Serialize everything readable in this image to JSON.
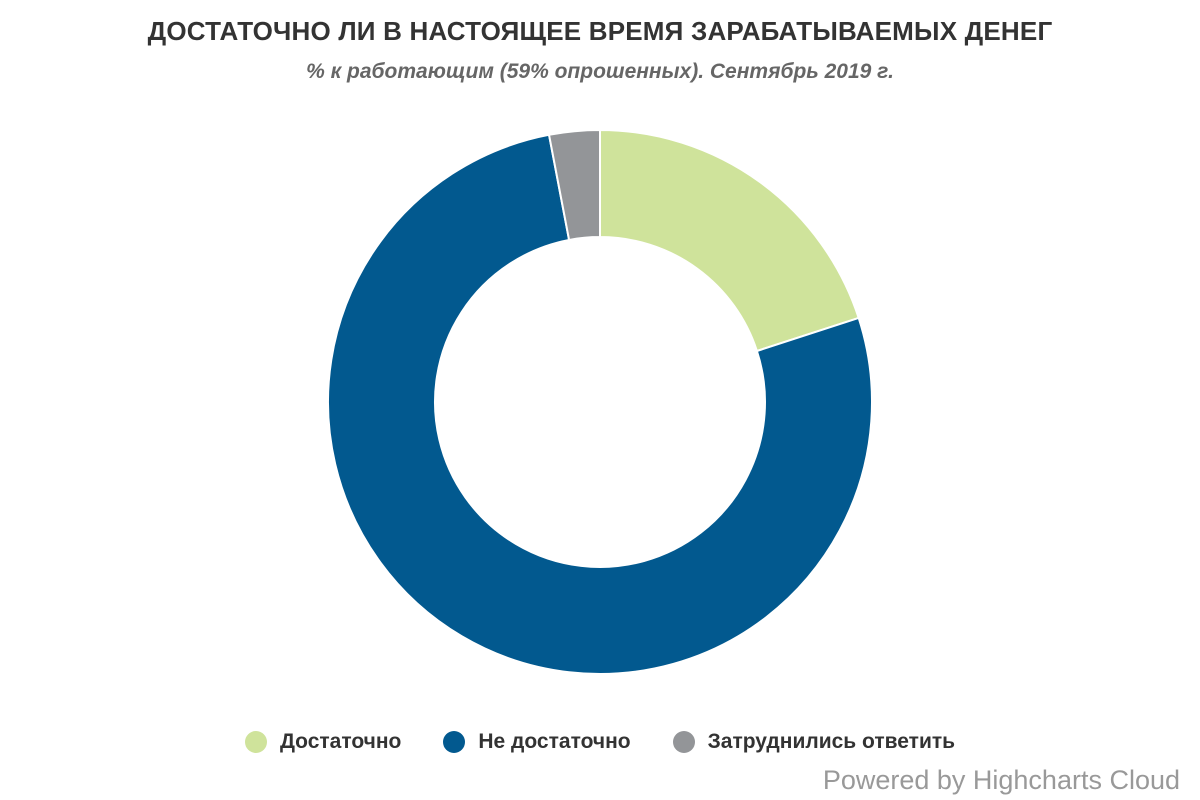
{
  "chart_data": {
    "type": "pie",
    "variant": "donut",
    "title": "ДОСТАТОЧНО ЛИ В НАСТОЯЩЕЕ ВРЕМЯ ЗАРАБАТЫВАЕМЫХ ДЕНЕГ",
    "subtitle": "% к работающим (59% опрошенных). Сентябрь 2019 г.",
    "categories": [
      "Достаточно",
      "Не достаточно",
      "Затруднились ответить"
    ],
    "values": [
      20,
      77,
      3
    ],
    "colors": [
      "#cfe39b",
      "#02598f",
      "#939598"
    ],
    "legend_position": "bottom-center",
    "data_labels": false
  },
  "credits": "Powered by Highcharts Cloud"
}
